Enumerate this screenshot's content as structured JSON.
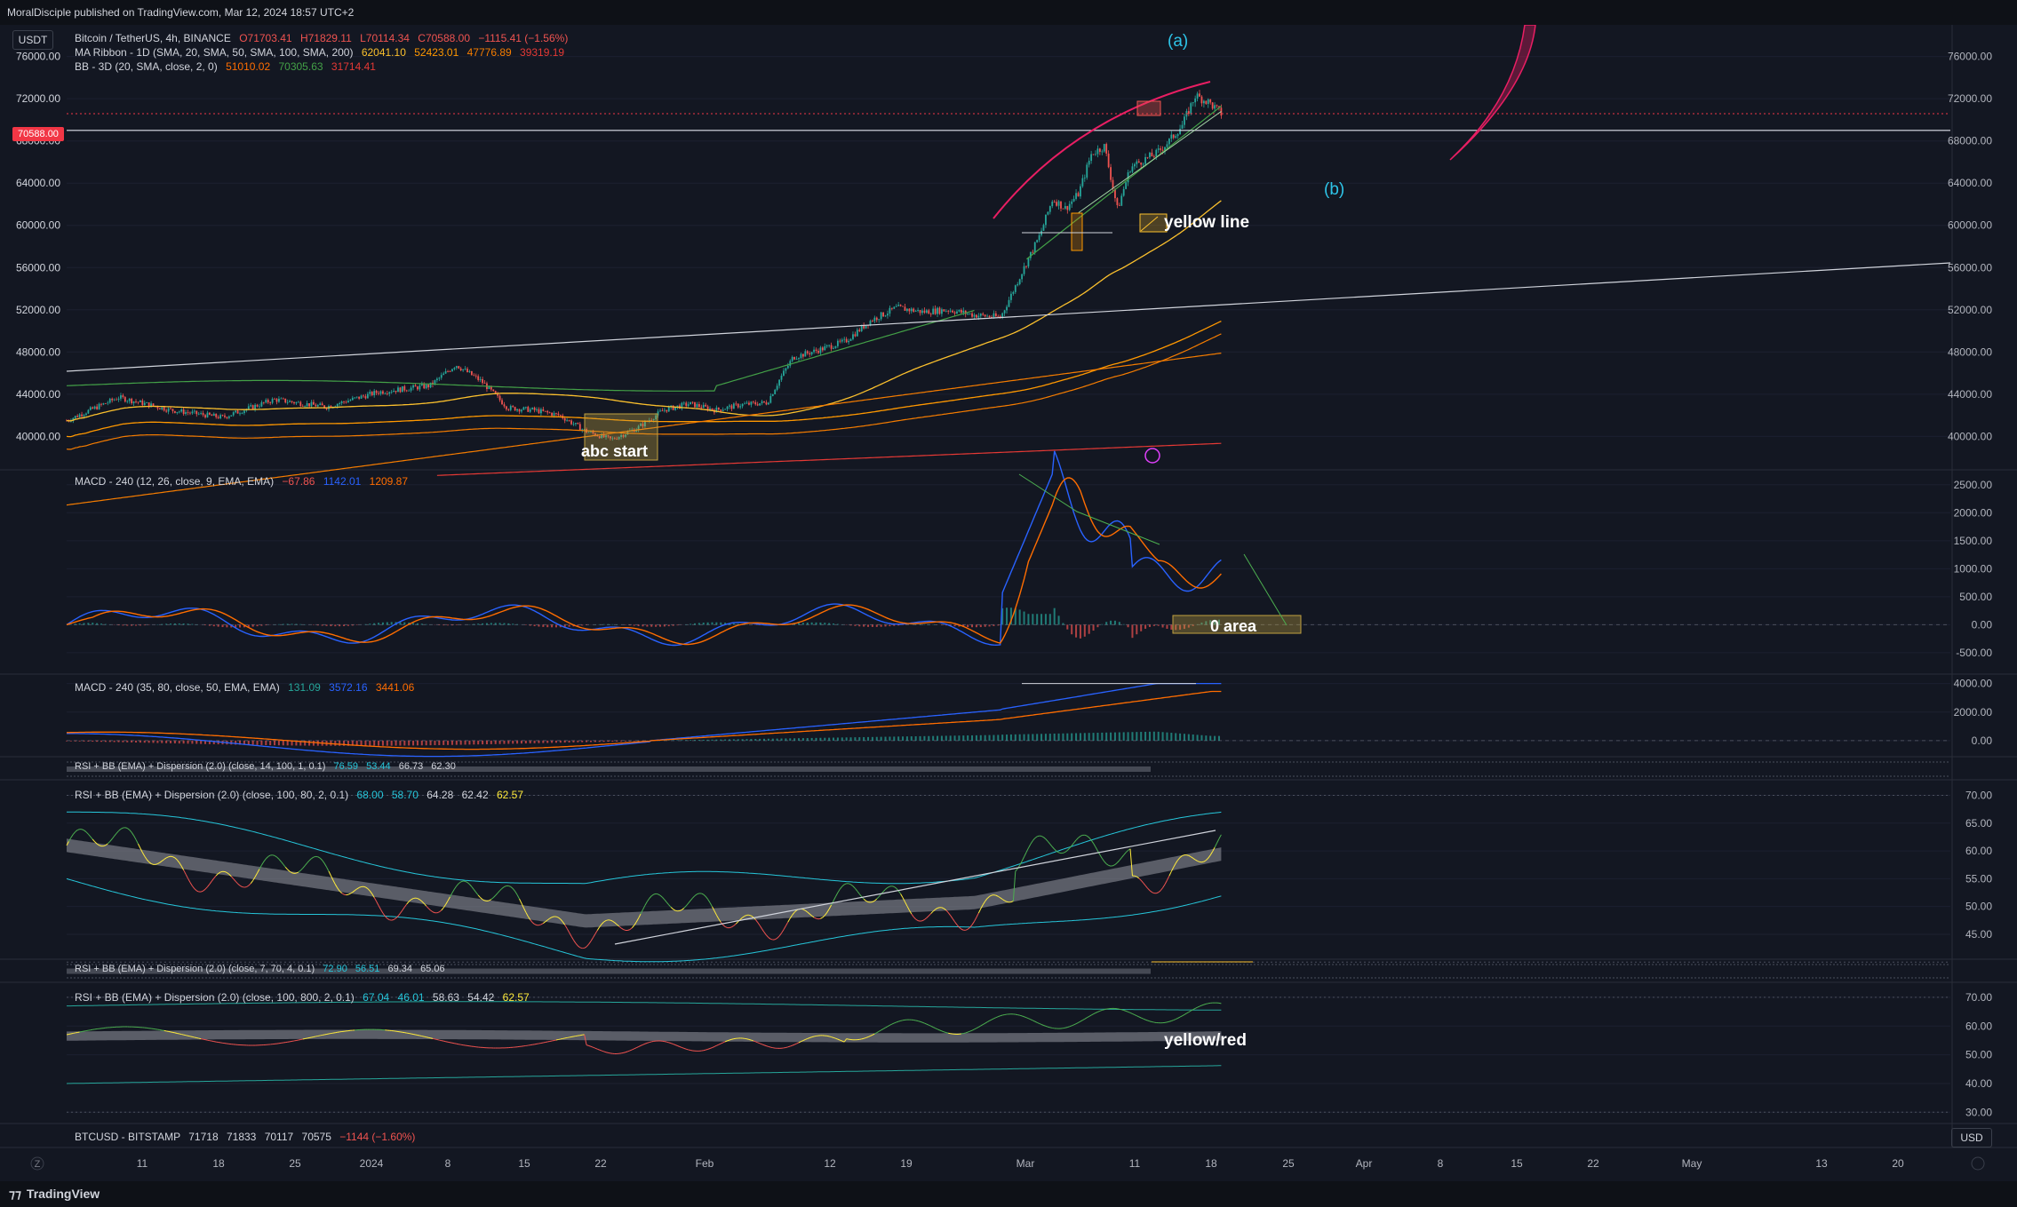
{
  "publisher_line": "MoralDisciple published on TradingView.com, Mar 12, 2024 18:57 UTC+2",
  "footer_brand": "TradingView",
  "top_left_badge": "USDT",
  "bottom_right_badge": "USD",
  "price_tag": "70588.00",
  "legend": {
    "symbol": "Bitcoin / TetherUS, 4h, BINANCE",
    "ohlc": [
      "O71703.41",
      "H71829.11",
      "L70114.34",
      "C70588.00",
      "−1115.41 (−1.56%)"
    ],
    "ma_ribbon": {
      "label": "MA Ribbon - 1D (SMA, 20, SMA, 50, SMA, 100, SMA, 200)",
      "values": [
        "62041.10",
        "52423.01",
        "47776.89",
        "39319.19"
      ]
    },
    "bb": {
      "label": "BB - 3D (20, SMA, close, 2, 0)",
      "values": [
        "51010.02",
        "70305.63",
        "31714.41"
      ]
    },
    "macd1": {
      "label": "MACD - 240 (12, 26, close, 9, EMA, EMA)",
      "values": [
        "−67.86",
        "1142.01",
        "1209.87"
      ]
    },
    "macd2": {
      "label": "MACD - 240 (35, 80, close, 50, EMA, EMA)",
      "values": [
        "131.09",
        "3572.16",
        "3441.06"
      ]
    },
    "rsi1": {
      "label": "RSI + BB (EMA) + Dispersion (2.0) (close, 14, 100, 1, 0.1)",
      "values": [
        "76.59",
        "53.44",
        "66.73",
        "62.30"
      ]
    },
    "rsi2": {
      "label": "RSI + BB (EMA) + Dispersion (2.0) (close, 100, 80, 2, 0.1)",
      "values": [
        "68.00",
        "58.70",
        "64.28",
        "62.42",
        "62.57"
      ]
    },
    "rsi3": {
      "label": "RSI + BB (EMA) + Dispersion (2.0) (close, 7, 70, 4, 0.1)",
      "values": [
        "72.90",
        "56.51",
        "69.34",
        "65.06"
      ]
    },
    "rsi4": {
      "label": "RSI + BB (EMA) + Dispersion (2.0) (close, 100, 800, 2, 0.1)",
      "values": [
        "67.04",
        "46.01",
        "58.63",
        "54.42",
        "62.57"
      ]
    },
    "btcusd": {
      "label": "BTCUSD - BITSTAMP",
      "values": [
        "71718",
        "71833",
        "70117",
        "70575",
        "−1144 (−1.60%)"
      ]
    }
  },
  "annotations": {
    "a": "(a)",
    "b": "(b)",
    "yellow_line": "yellow line",
    "abc_start": "abc start",
    "zero_area": "0 area",
    "yellow_red": "yellow/red"
  },
  "colors": {
    "background": "#131722",
    "up": "#26a69a",
    "down": "#ef5350",
    "macd_blue": "#2962ff",
    "macd_orange": "#ff6d00",
    "annotation_blue": "#2ec4e8",
    "arc_pink": "#e91e63"
  },
  "chart_data": [
    {
      "type": "candlestick",
      "pane": "price",
      "yticks": [
        40000,
        44000,
        48000,
        52000,
        56000,
        60000,
        64000,
        68000,
        72000,
        76000
      ],
      "ylim": [
        37000,
        79000
      ],
      "x_labels": [
        "11",
        "18",
        "25",
        "2024",
        "8",
        "15",
        "22",
        "Feb",
        "12",
        "19",
        "Mar",
        "11",
        "18",
        "25",
        "Apr",
        "8",
        "15",
        "22",
        "May",
        "13",
        "20"
      ],
      "close_path": [
        [
          0,
          41500
        ],
        [
          4,
          43700
        ],
        [
          8,
          42500
        ],
        [
          12,
          41800
        ],
        [
          16,
          43500
        ],
        [
          20,
          42800
        ],
        [
          24,
          44200
        ],
        [
          28,
          44800
        ],
        [
          30,
          46800
        ],
        [
          32,
          45200
        ],
        [
          34,
          42700
        ],
        [
          36,
          42500
        ],
        [
          38,
          42000
        ],
        [
          40,
          40500
        ],
        [
          42,
          39700
        ],
        [
          44,
          40800
        ],
        [
          46,
          42500
        ],
        [
          48,
          43100
        ],
        [
          50,
          42500
        ],
        [
          52,
          43000
        ],
        [
          54,
          43200
        ],
        [
          55,
          45500
        ],
        [
          56,
          47500
        ],
        [
          58,
          48200
        ],
        [
          60,
          49000
        ],
        [
          62,
          51000
        ],
        [
          64,
          52200
        ],
        [
          66,
          51800
        ],
        [
          68,
          52000
        ],
        [
          70,
          51500
        ],
        [
          72,
          51300
        ],
        [
          74,
          56500
        ],
        [
          75,
          59000
        ],
        [
          76,
          62500
        ],
        [
          77,
          61600
        ],
        [
          78,
          63000
        ],
        [
          79,
          66800
        ],
        [
          80,
          67500
        ],
        [
          81,
          61500
        ],
        [
          82,
          65500
        ],
        [
          83,
          66200
        ],
        [
          84,
          66800
        ],
        [
          85,
          68000
        ],
        [
          86,
          69500
        ],
        [
          87,
          72300
        ],
        [
          88,
          71700
        ],
        [
          89,
          70588
        ]
      ]
    },
    {
      "type": "line",
      "pane": "macd1",
      "yticks": [
        -500,
        0,
        500,
        1000,
        1500,
        2000,
        2500
      ],
      "ylim": [
        -850,
        2750
      ]
    },
    {
      "type": "line",
      "pane": "macd2",
      "yticks": [
        0,
        2000,
        4000
      ],
      "ylim": [
        -1000,
        4600
      ]
    },
    {
      "type": "line",
      "pane": "rsi2",
      "yticks": [
        45,
        50,
        55,
        60,
        65,
        70
      ],
      "ylim": [
        41,
        72
      ]
    },
    {
      "type": "line",
      "pane": "rsi4",
      "yticks": [
        30,
        40,
        50,
        60,
        70
      ],
      "ylim": [
        27,
        74
      ]
    }
  ]
}
